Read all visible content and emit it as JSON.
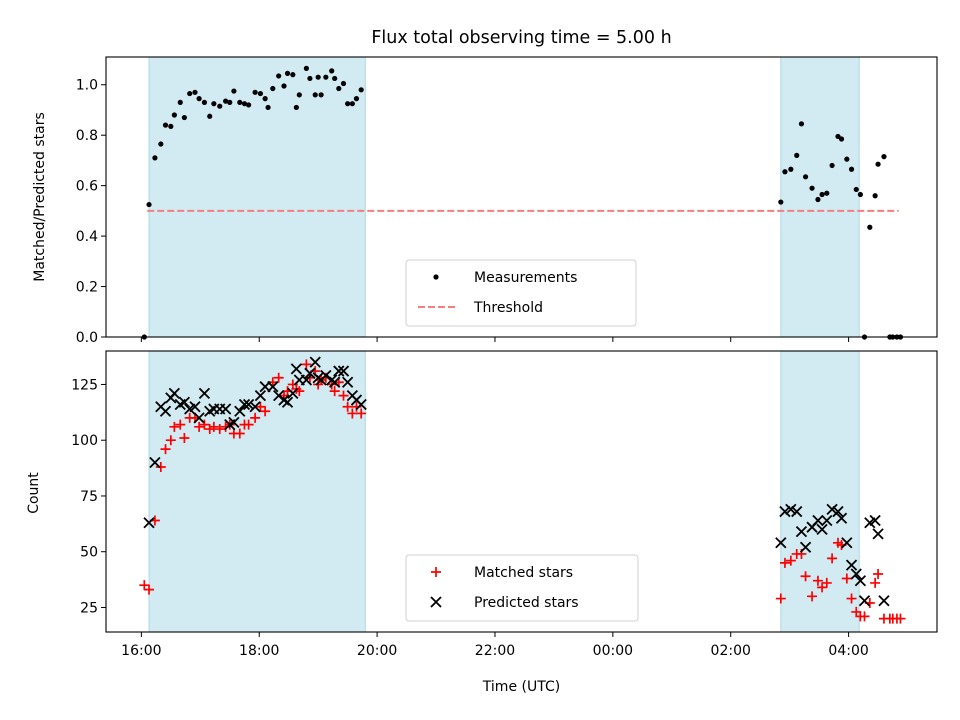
{
  "chart_data": {
    "title": "Flux total observing time = 5.00 h",
    "xlabel": "Time (UTC)",
    "x_unit": "hours after 16:00 UTC",
    "x_ticks": [
      {
        "v": 0,
        "label": "16:00"
      },
      {
        "v": 2,
        "label": "18:00"
      },
      {
        "v": 4,
        "label": "20:00"
      },
      {
        "v": 6,
        "label": "22:00"
      },
      {
        "v": 8,
        "label": "00:00"
      },
      {
        "v": 10,
        "label": "02:00"
      },
      {
        "v": 12,
        "label": "04:00"
      }
    ],
    "xlim": [
      -0.6,
      13.5
    ],
    "shaded_intervals": [
      [
        0.13,
        3.8
      ],
      [
        10.85,
        12.18
      ]
    ],
    "shade_color": "#add8e6",
    "panels": [
      {
        "type": "scatter",
        "ylabel": "Matched/Predicted stars",
        "ylim": [
          0,
          1.11
        ],
        "y_ticks": [
          0.0,
          0.2,
          0.4,
          0.6,
          0.8,
          1.0
        ],
        "y_tick_labels": [
          "0.0",
          "0.2",
          "0.4",
          "0.6",
          "0.8",
          "1.0"
        ],
        "legend": {
          "position": "lower center",
          "entries": [
            "Measurements",
            "Threshold"
          ]
        },
        "threshold": {
          "name": "Threshold",
          "value": 0.5,
          "x": [
            0.1,
            12.85
          ],
          "color": "#f08080"
        },
        "series": [
          {
            "name": "Measurements",
            "color": "#000000",
            "marker": "dot",
            "points": [
              [
                0.05,
                0.0
              ],
              [
                0.13,
                0.525
              ],
              [
                0.23,
                0.71
              ],
              [
                0.33,
                0.765
              ],
              [
                0.41,
                0.84
              ],
              [
                0.5,
                0.835
              ],
              [
                0.56,
                0.88
              ],
              [
                0.66,
                0.93
              ],
              [
                0.73,
                0.87
              ],
              [
                0.82,
                0.965
              ],
              [
                0.91,
                0.97
              ],
              [
                0.98,
                0.945
              ],
              [
                1.07,
                0.93
              ],
              [
                1.16,
                0.875
              ],
              [
                1.23,
                0.925
              ],
              [
                1.33,
                0.915
              ],
              [
                1.43,
                0.935
              ],
              [
                1.5,
                0.93
              ],
              [
                1.57,
                0.975
              ],
              [
                1.67,
                0.93
              ],
              [
                1.75,
                0.925
              ],
              [
                1.82,
                0.92
              ],
              [
                1.93,
                0.97
              ],
              [
                2.02,
                0.965
              ],
              [
                2.1,
                0.945
              ],
              [
                2.15,
                0.91
              ],
              [
                2.23,
                0.985
              ],
              [
                2.33,
                1.035
              ],
              [
                2.42,
                0.995
              ],
              [
                2.48,
                1.045
              ],
              [
                2.57,
                1.04
              ],
              [
                2.63,
                0.91
              ],
              [
                2.68,
                0.96
              ],
              [
                2.8,
                1.065
              ],
              [
                2.86,
                1.025
              ],
              [
                2.95,
                0.96
              ],
              [
                3.0,
                1.03
              ],
              [
                3.05,
                0.96
              ],
              [
                3.13,
                1.03
              ],
              [
                3.23,
                1.055
              ],
              [
                3.28,
                1.025
              ],
              [
                3.35,
                0.985
              ],
              [
                3.43,
                1.005
              ],
              [
                3.5,
                0.925
              ],
              [
                3.58,
                0.925
              ],
              [
                3.65,
                0.945
              ],
              [
                3.73,
                0.98
              ],
              [
                10.85,
                0.535
              ],
              [
                10.92,
                0.655
              ],
              [
                11.02,
                0.665
              ],
              [
                11.12,
                0.72
              ],
              [
                11.2,
                0.845
              ],
              [
                11.27,
                0.635
              ],
              [
                11.38,
                0.59
              ],
              [
                11.48,
                0.545
              ],
              [
                11.55,
                0.565
              ],
              [
                11.63,
                0.57
              ],
              [
                11.72,
                0.68
              ],
              [
                11.82,
                0.795
              ],
              [
                11.88,
                0.785
              ],
              [
                11.97,
                0.705
              ],
              [
                12.05,
                0.665
              ],
              [
                12.13,
                0.585
              ],
              [
                12.2,
                0.565
              ],
              [
                12.27,
                0.0
              ],
              [
                12.36,
                0.435
              ],
              [
                12.45,
                0.56
              ],
              [
                12.5,
                0.685
              ],
              [
                12.6,
                0.715
              ],
              [
                12.7,
                0.0
              ],
              [
                12.75,
                0.0
              ],
              [
                12.82,
                0.0
              ],
              [
                12.88,
                0.0
              ]
            ]
          }
        ]
      },
      {
        "type": "scatter",
        "ylabel": "Count",
        "ylim": [
          14,
          140
        ],
        "y_ticks": [
          25,
          50,
          75,
          100,
          125
        ],
        "y_tick_labels": [
          "25",
          "50",
          "75",
          "100",
          "125"
        ],
        "legend": {
          "position": "lower center",
          "entries": [
            "Matched stars",
            "Predicted stars"
          ]
        },
        "series": [
          {
            "name": "Matched stars",
            "color": "#ff0000",
            "marker": "plus",
            "points": [
              [
                0.05,
                35
              ],
              [
                0.13,
                33
              ],
              [
                0.23,
                64
              ],
              [
                0.33,
                88
              ],
              [
                0.41,
                96
              ],
              [
                0.5,
                100
              ],
              [
                0.56,
                106
              ],
              [
                0.66,
                107
              ],
              [
                0.73,
                101
              ],
              [
                0.82,
                110
              ],
              [
                0.91,
                110
              ],
              [
                0.98,
                106
              ],
              [
                1.07,
                107
              ],
              [
                1.16,
                105
              ],
              [
                1.23,
                106
              ],
              [
                1.33,
                105
              ],
              [
                1.43,
                106
              ],
              [
                1.5,
                107
              ],
              [
                1.57,
                103
              ],
              [
                1.67,
                103
              ],
              [
                1.75,
                107
              ],
              [
                1.82,
                107
              ],
              [
                1.93,
                110
              ],
              [
                2.02,
                115
              ],
              [
                2.1,
                113
              ],
              [
                2.23,
                126
              ],
              [
                2.33,
                128
              ],
              [
                2.42,
                120
              ],
              [
                2.48,
                122
              ],
              [
                2.57,
                125
              ],
              [
                2.63,
                123
              ],
              [
                2.68,
                122
              ],
              [
                2.8,
                134
              ],
              [
                2.86,
                128
              ],
              [
                2.95,
                131
              ],
              [
                3.0,
                125
              ],
              [
                3.05,
                127
              ],
              [
                3.13,
                128
              ],
              [
                3.23,
                125
              ],
              [
                3.28,
                122
              ],
              [
                3.35,
                126
              ],
              [
                3.43,
                120
              ],
              [
                3.5,
                115
              ],
              [
                3.58,
                112
              ],
              [
                3.65,
                115
              ],
              [
                3.73,
                112
              ],
              [
                10.85,
                29
              ],
              [
                10.92,
                45
              ],
              [
                11.02,
                46
              ],
              [
                11.12,
                49
              ],
              [
                11.2,
                49
              ],
              [
                11.27,
                39
              ],
              [
                11.38,
                30
              ],
              [
                11.48,
                37
              ],
              [
                11.55,
                34
              ],
              [
                11.63,
                36
              ],
              [
                11.72,
                47
              ],
              [
                11.82,
                54
              ],
              [
                11.88,
                53
              ],
              [
                11.97,
                38
              ],
              [
                12.05,
                29
              ],
              [
                12.13,
                23
              ],
              [
                12.2,
                21
              ],
              [
                12.27,
                21
              ],
              [
                12.36,
                27
              ],
              [
                12.45,
                36
              ],
              [
                12.5,
                40
              ],
              [
                12.6,
                20
              ],
              [
                12.7,
                20
              ],
              [
                12.75,
                20
              ],
              [
                12.82,
                20
              ],
              [
                12.88,
                20
              ]
            ]
          },
          {
            "name": "Predicted stars",
            "color": "#000000",
            "marker": "x",
            "points": [
              [
                0.13,
                63
              ],
              [
                0.23,
                90
              ],
              [
                0.33,
                115
              ],
              [
                0.41,
                113
              ],
              [
                0.5,
                119
              ],
              [
                0.56,
                121
              ],
              [
                0.66,
                116
              ],
              [
                0.73,
                117
              ],
              [
                0.82,
                114
              ],
              [
                0.91,
                115
              ],
              [
                0.98,
                110
              ],
              [
                1.07,
                121
              ],
              [
                1.16,
                113
              ],
              [
                1.23,
                114
              ],
              [
                1.33,
                114
              ],
              [
                1.43,
                114
              ],
              [
                1.5,
                107
              ],
              [
                1.57,
                108
              ],
              [
                1.67,
                113
              ],
              [
                1.75,
                116
              ],
              [
                1.82,
                116
              ],
              [
                1.93,
                115
              ],
              [
                2.02,
                120
              ],
              [
                2.1,
                124
              ],
              [
                2.23,
                124
              ],
              [
                2.33,
                120
              ],
              [
                2.42,
                118
              ],
              [
                2.48,
                117
              ],
              [
                2.57,
                121
              ],
              [
                2.63,
                132
              ],
              [
                2.68,
                127
              ],
              [
                2.8,
                127
              ],
              [
                2.86,
                130
              ],
              [
                2.95,
                135
              ],
              [
                3.0,
                128
              ],
              [
                3.05,
                127
              ],
              [
                3.13,
                129
              ],
              [
                3.23,
                127
              ],
              [
                3.28,
                126
              ],
              [
                3.35,
                131
              ],
              [
                3.43,
                131
              ],
              [
                3.5,
                126
              ],
              [
                3.58,
                120
              ],
              [
                3.65,
                118
              ],
              [
                3.73,
                116
              ],
              [
                10.85,
                54
              ],
              [
                10.92,
                68
              ],
              [
                11.02,
                69
              ],
              [
                11.12,
                68
              ],
              [
                11.2,
                59
              ],
              [
                11.27,
                52
              ],
              [
                11.38,
                61
              ],
              [
                11.48,
                64
              ],
              [
                11.55,
                60
              ],
              [
                11.63,
                64
              ],
              [
                11.72,
                69
              ],
              [
                11.82,
                68
              ],
              [
                11.88,
                65
              ],
              [
                11.97,
                54
              ],
              [
                12.05,
                44
              ],
              [
                12.13,
                40
              ],
              [
                12.2,
                37
              ],
              [
                12.27,
                28
              ],
              [
                12.36,
                63
              ],
              [
                12.45,
                64
              ],
              [
                12.5,
                58
              ],
              [
                12.6,
                28
              ]
            ]
          }
        ]
      }
    ]
  }
}
